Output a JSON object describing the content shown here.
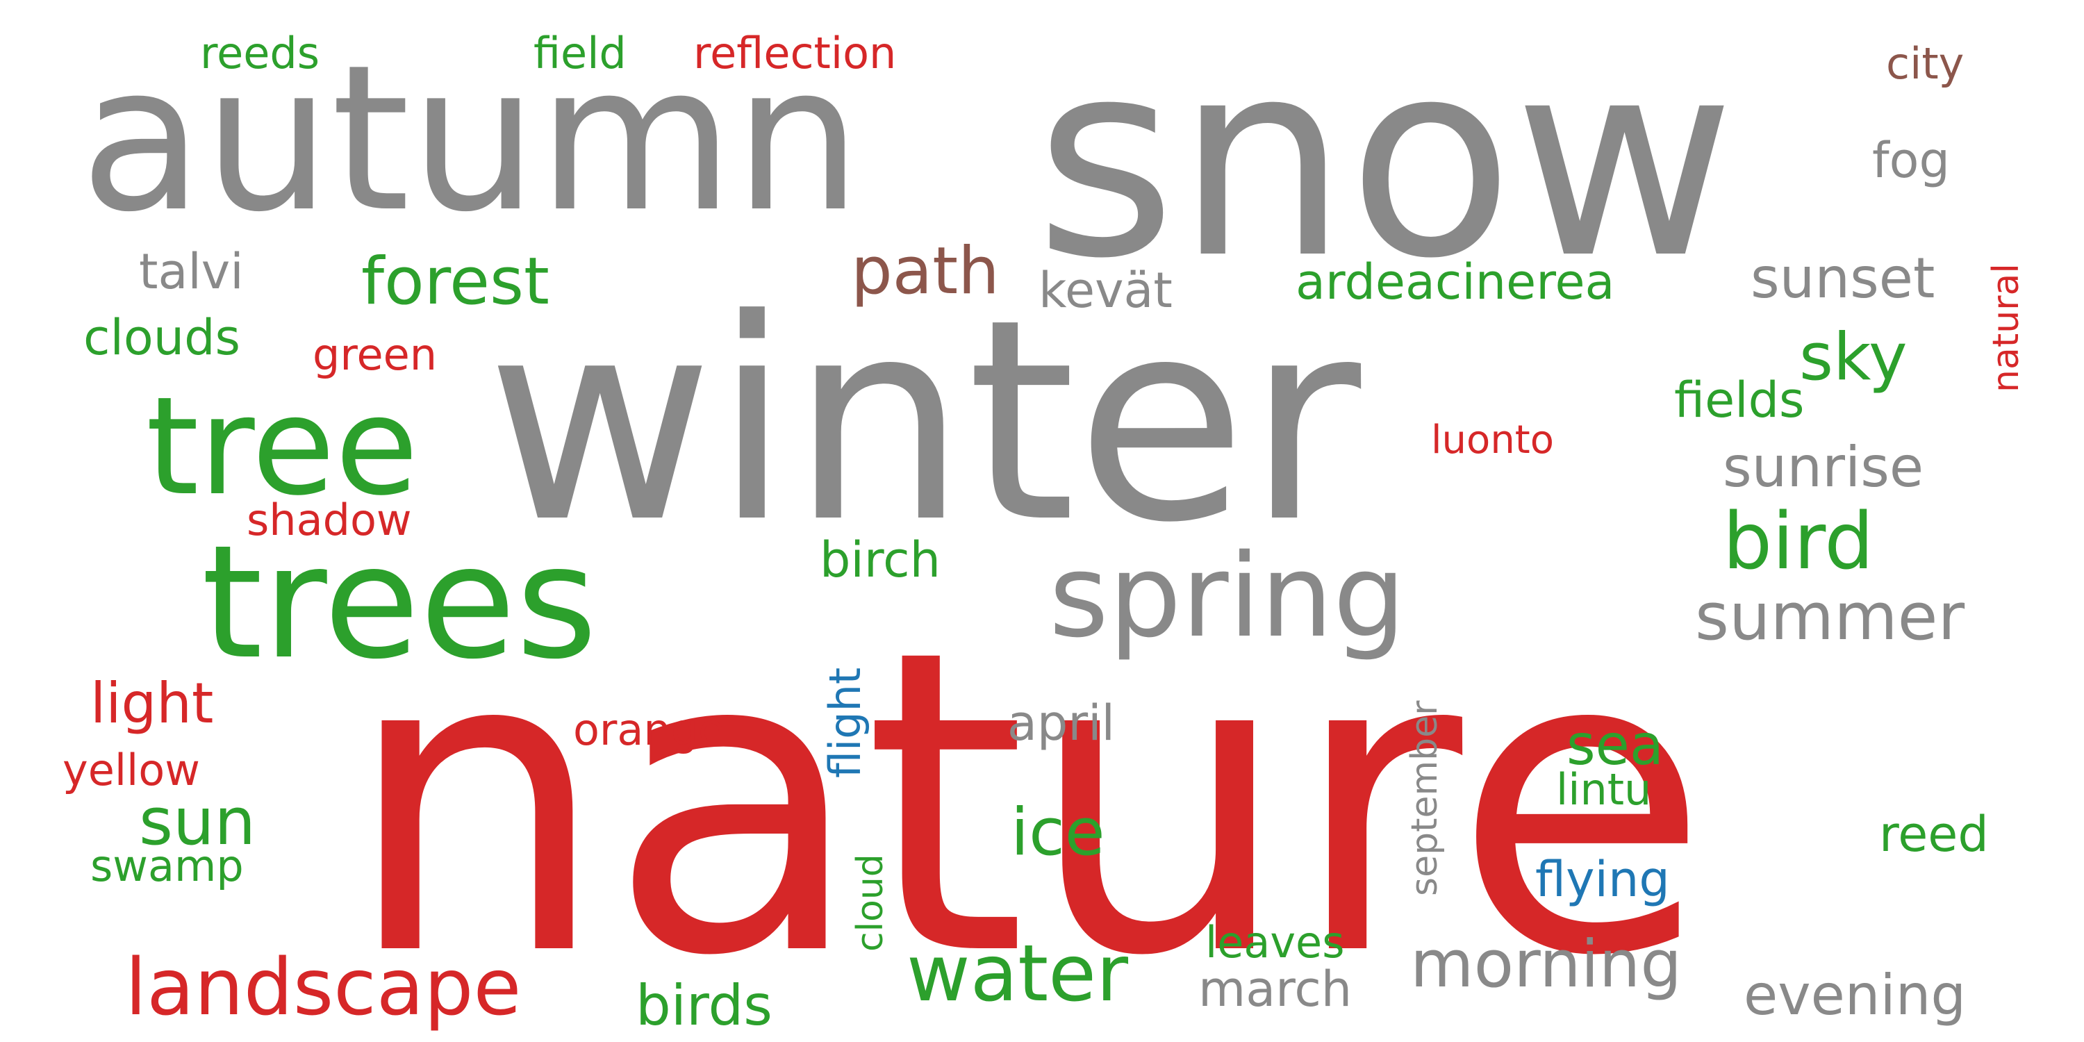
{
  "colors": {
    "gray": "#898989",
    "red": "#d62728",
    "green": "#2ca02c",
    "brown": "#8c564b",
    "blue": "#1f77b4",
    "background": "#ffffff"
  },
  "words": [
    {
      "text": "nature",
      "color": "red"
    },
    {
      "text": "winter",
      "color": "gray"
    },
    {
      "text": "snow",
      "color": "gray"
    },
    {
      "text": "autumn",
      "color": "gray"
    },
    {
      "text": "trees",
      "color": "green"
    },
    {
      "text": "tree",
      "color": "green"
    },
    {
      "text": "spring",
      "color": "gray"
    },
    {
      "text": "landscape",
      "color": "red"
    },
    {
      "text": "water",
      "color": "green"
    },
    {
      "text": "bird",
      "color": "green"
    },
    {
      "text": "summer",
      "color": "gray"
    },
    {
      "text": "morning",
      "color": "gray"
    },
    {
      "text": "path",
      "color": "brown"
    },
    {
      "text": "forest",
      "color": "green"
    },
    {
      "text": "sky",
      "color": "green"
    },
    {
      "text": "ice",
      "color": "green"
    },
    {
      "text": "sun",
      "color": "green"
    },
    {
      "text": "light",
      "color": "red"
    },
    {
      "text": "sea",
      "color": "green"
    },
    {
      "text": "sunrise",
      "color": "gray"
    },
    {
      "text": "sunset",
      "color": "gray"
    },
    {
      "text": "birds",
      "color": "green"
    },
    {
      "text": "evening",
      "color": "gray"
    },
    {
      "text": "ardeacinerea",
      "color": "green"
    },
    {
      "text": "clouds",
      "color": "green"
    },
    {
      "text": "march",
      "color": "gray"
    },
    {
      "text": "birch",
      "color": "green"
    },
    {
      "text": "flight",
      "color": "blue"
    },
    {
      "text": "april",
      "color": "gray"
    },
    {
      "text": "reflection",
      "color": "red"
    },
    {
      "text": "field",
      "color": "green"
    },
    {
      "text": "reeds",
      "color": "green"
    },
    {
      "text": "city",
      "color": "brown"
    },
    {
      "text": "fog",
      "color": "gray"
    },
    {
      "text": "talvi",
      "color": "gray"
    },
    {
      "text": "kevät",
      "color": "gray"
    },
    {
      "text": "green",
      "color": "red"
    },
    {
      "text": "fields",
      "color": "green"
    },
    {
      "text": "luonto",
      "color": "red"
    },
    {
      "text": "shadow",
      "color": "red"
    },
    {
      "text": "orange",
      "color": "red"
    },
    {
      "text": "yellow",
      "color": "red"
    },
    {
      "text": "swamp",
      "color": "green"
    },
    {
      "text": "flying",
      "color": "blue"
    },
    {
      "text": "lintu",
      "color": "green"
    },
    {
      "text": "reed",
      "color": "green"
    },
    {
      "text": "leaves",
      "color": "green"
    },
    {
      "text": "natural",
      "color": "red"
    },
    {
      "text": "september",
      "color": "gray"
    },
    {
      "text": "cloud",
      "color": "green"
    }
  ]
}
